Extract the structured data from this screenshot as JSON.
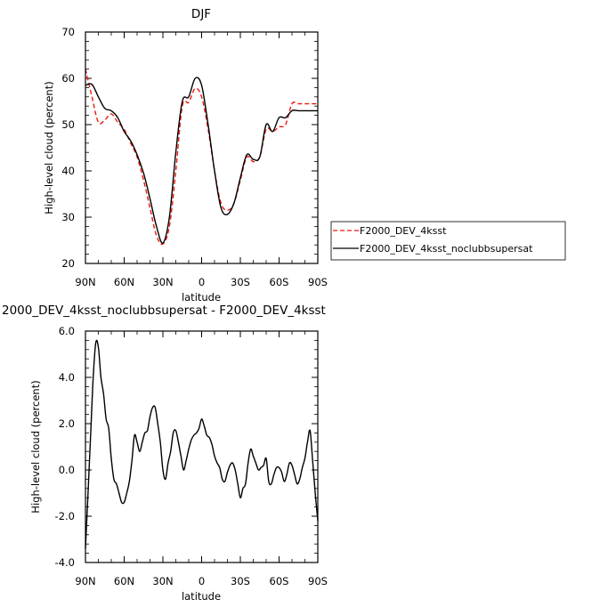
{
  "colors": {
    "series_control": "#e8190f",
    "series_test": "#000000",
    "axes": "#000000"
  },
  "chart_data": [
    {
      "type": "line",
      "title": "DJF",
      "xlabel": "latitude",
      "ylabel": "High-level cloud (percent)",
      "xlim": [
        90,
        -90
      ],
      "ylim": [
        20,
        70
      ],
      "x_axis_reversed": true,
      "xticks": [
        "90N",
        "60N",
        "30N",
        "0",
        "30S",
        "60S",
        "90S"
      ],
      "yticks": [
        "20",
        "30",
        "40",
        "50",
        "60",
        "70"
      ],
      "legend_position": "right",
      "x": [
        90,
        85,
        80,
        75,
        70,
        65,
        60,
        55,
        50,
        45,
        40,
        35,
        30,
        25,
        20,
        15,
        10,
        5,
        0,
        -5,
        -10,
        -15,
        -20,
        -25,
        -30,
        -35,
        -40,
        -45,
        -50,
        -55,
        -60,
        -65,
        -70,
        -75,
        -80,
        -85,
        -90
      ],
      "series": [
        {
          "name": "F2000_DEV_4ksst",
          "line_style": "dashed",
          "values": [
            62,
            56,
            50.5,
            51,
            52.3,
            50.5,
            49,
            46,
            43,
            38,
            32,
            26,
            24.2,
            28,
            40,
            54,
            54.8,
            57.8,
            56,
            49,
            40,
            33,
            31.5,
            33,
            38,
            43,
            42,
            43,
            49,
            48.5,
            49.5,
            50,
            54.5,
            54.5,
            54.5,
            54.5,
            54.5
          ]
        },
        {
          "name": "F2000_DEV_4ksst_noclubbsupersat",
          "line_style": "solid",
          "values": [
            58.5,
            58.7,
            56,
            53.5,
            53,
            51.5,
            48.5,
            46.5,
            43.5,
            39.5,
            34,
            28,
            24.4,
            30,
            44,
            55,
            56,
            60,
            58.5,
            50,
            40,
            32,
            30.6,
            33,
            38.5,
            43.5,
            42.5,
            43,
            50,
            48.5,
            51.5,
            51.5,
            53,
            53,
            53,
            53,
            53
          ]
        }
      ]
    },
    {
      "type": "line",
      "title": "2000_DEV_4ksst_noclubbsupersat - F2000_DEV_4ksst",
      "xlabel": "latitude",
      "ylabel": "High-level cloud (percent)",
      "xlim": [
        90,
        -90
      ],
      "ylim": [
        -4,
        6
      ],
      "x_axis_reversed": true,
      "xticks": [
        "90N",
        "60N",
        "30N",
        "0",
        "30S",
        "60S",
        "90S"
      ],
      "yticks": [
        "-4.0",
        "-2.0",
        "0.0",
        "2.0",
        "4.0",
        "6.0"
      ],
      "x": [
        90,
        88,
        86,
        84,
        82,
        80,
        78,
        76,
        74,
        72,
        70,
        68,
        66,
        64,
        62,
        60,
        58,
        56,
        54,
        52,
        50,
        48,
        46,
        44,
        42,
        40,
        38,
        36,
        34,
        32,
        30,
        28,
        26,
        24,
        22,
        20,
        18,
        16,
        14,
        12,
        10,
        8,
        6,
        4,
        2,
        0,
        -2,
        -4,
        -6,
        -8,
        -10,
        -12,
        -14,
        -16,
        -18,
        -20,
        -22,
        -24,
        -26,
        -28,
        -30,
        -32,
        -34,
        -36,
        -38,
        -40,
        -42,
        -44,
        -46,
        -48,
        -50,
        -52,
        -54,
        -56,
        -58,
        -60,
        -62,
        -64,
        -66,
        -68,
        -70,
        -72,
        -74,
        -76,
        -78,
        -80,
        -82,
        -84,
        -86,
        -88,
        -90
      ],
      "series": [
        {
          "name": "",
          "line_style": "solid",
          "values": [
            -3.4,
            -1.0,
            1.5,
            4.0,
            5.5,
            5.3,
            4.0,
            3.3,
            2.2,
            1.8,
            0.5,
            -0.4,
            -0.6,
            -1.0,
            -1.4,
            -1.4,
            -1.0,
            -0.5,
            0.4,
            1.5,
            1.2,
            0.8,
            1.2,
            1.6,
            1.7,
            2.3,
            2.7,
            2.7,
            2.0,
            1.2,
            0.0,
            -0.4,
            0.3,
            0.8,
            1.6,
            1.7,
            1.2,
            0.6,
            0.0,
            0.4,
            0.9,
            1.3,
            1.5,
            1.6,
            1.8,
            2.2,
            1.9,
            1.5,
            1.4,
            1.1,
            0.6,
            0.3,
            0.1,
            -0.4,
            -0.5,
            -0.1,
            0.2,
            0.3,
            0.0,
            -0.6,
            -1.2,
            -0.8,
            -0.6,
            0.3,
            0.9,
            0.6,
            0.3,
            0.0,
            0.1,
            0.2,
            0.5,
            -0.5,
            -0.6,
            -0.2,
            0.1,
            0.1,
            -0.1,
            -0.5,
            -0.2,
            0.3,
            0.2,
            -0.2,
            -0.6,
            -0.4,
            0.1,
            0.5,
            1.2,
            1.7,
            0.4,
            -1.0,
            -2.2
          ]
        }
      ]
    }
  ]
}
